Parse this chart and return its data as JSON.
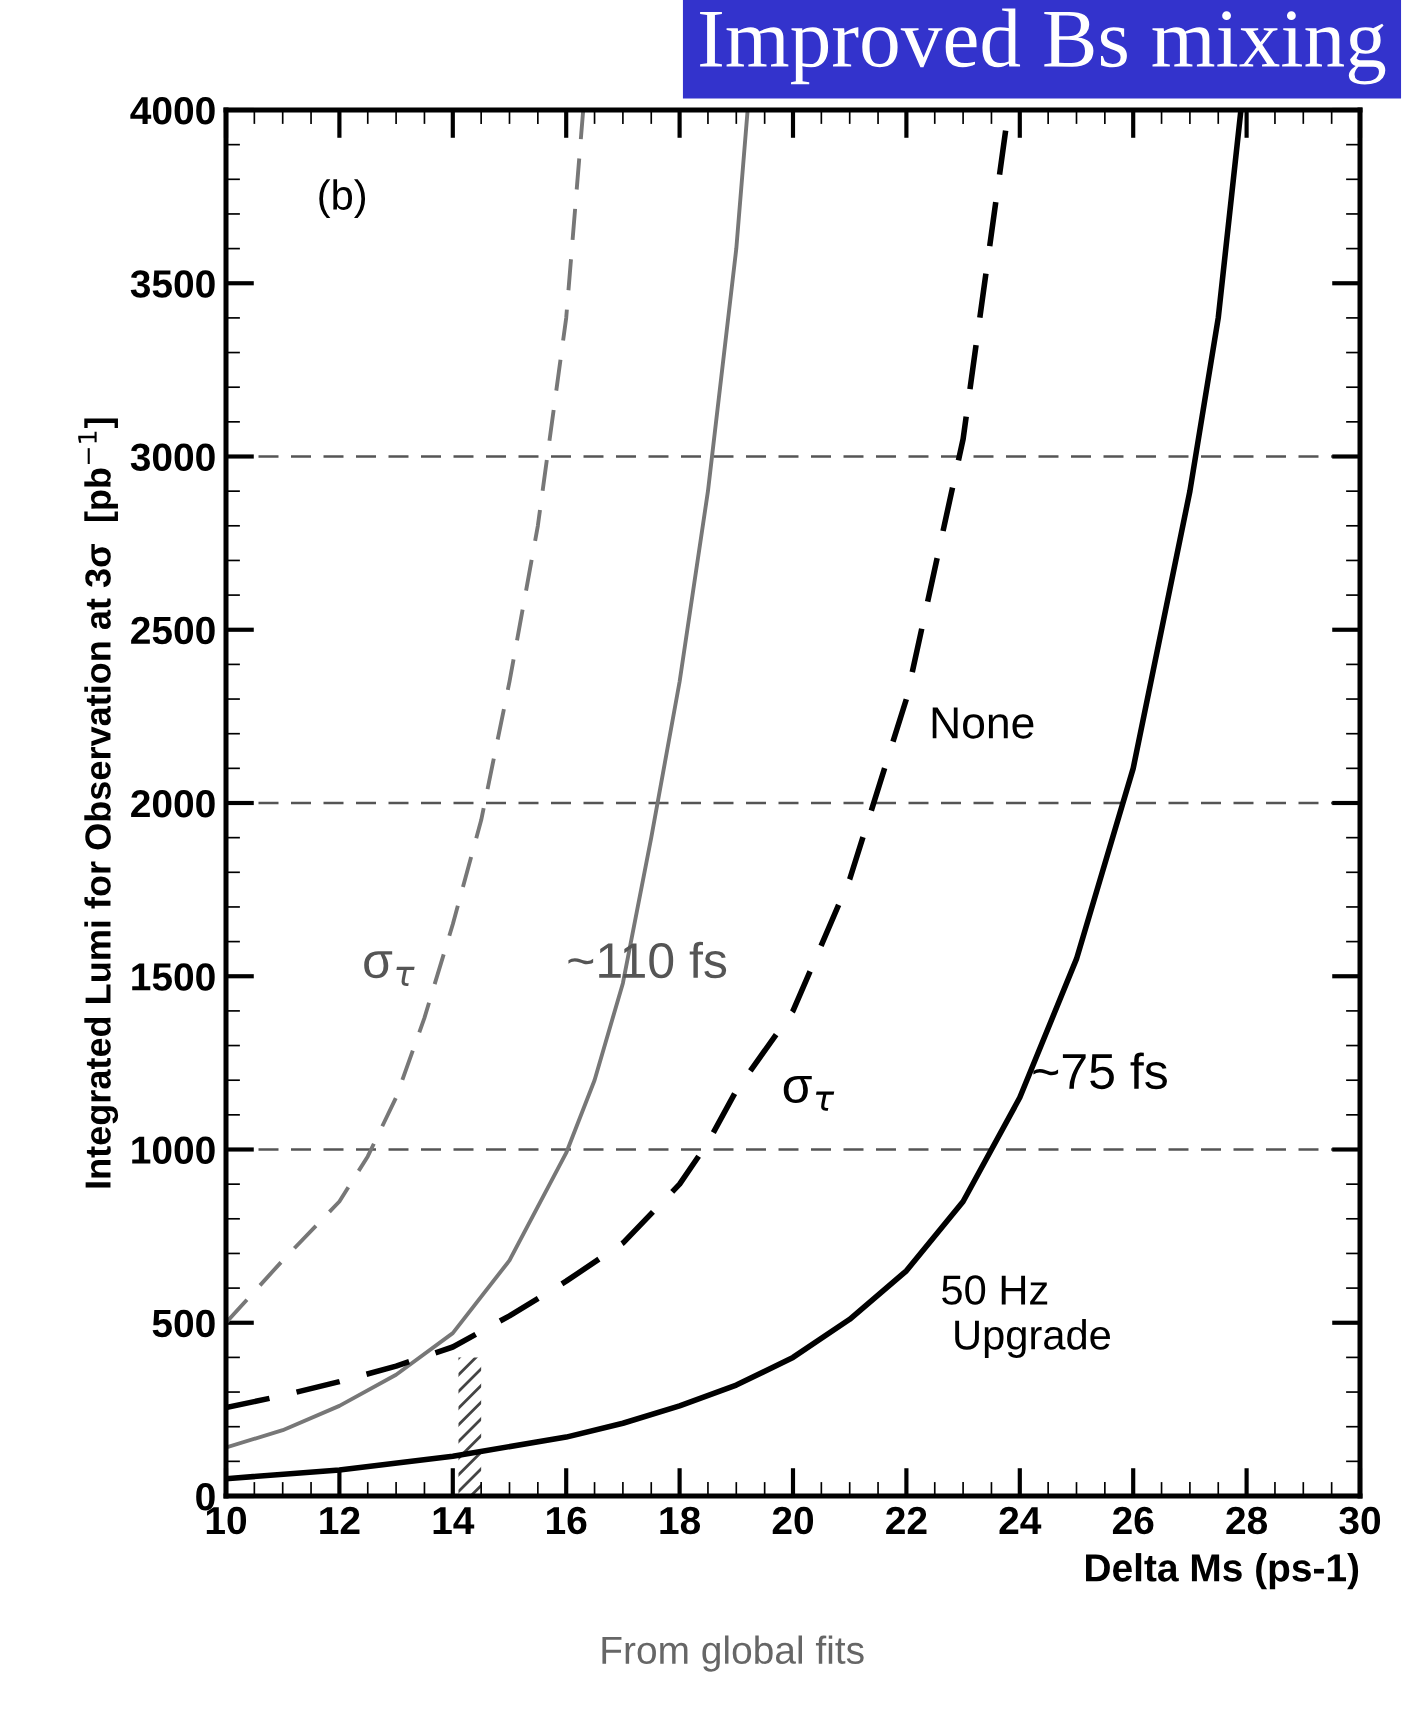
{
  "chart_data": {
    "type": "line",
    "title": "Improved Bs mixing",
    "xlabel": "Delta Ms (ps-1)",
    "ylabel": "Integrated Lumi for Observation at 3σ  [pb$^{−1}$]",
    "xlim": [
      10,
      30
    ],
    "xticks": [
      10,
      12,
      14,
      16,
      18,
      20,
      22,
      24,
      26,
      28,
      30
    ],
    "ylim": [
      0,
      4000
    ],
    "yticks": [
      0,
      500,
      1000,
      1500,
      2000,
      2500,
      3000,
      3500,
      4000
    ],
    "grid": false,
    "legend": false,
    "series": [
      {
        "color": "#777777",
        "line_style": "dashed",
        "x": [
          10,
          11,
          12,
          12.5,
          13,
          13.5,
          14,
          14.5,
          15,
          15.5,
          16,
          16.3
        ],
        "values": [
          500,
          680,
          850,
          980,
          1150,
          1380,
          1650,
          1950,
          2350,
          2800,
          3400,
          4000
        ]
      },
      {
        "color": "#777777",
        "line_style": "solid",
        "x": [
          10,
          11,
          12,
          13,
          14,
          15,
          16,
          16.5,
          17,
          17.5,
          18,
          18.5,
          19,
          19.2
        ],
        "values": [
          140,
          190,
          260,
          350,
          470,
          680,
          990,
          1200,
          1480,
          1900,
          2350,
          2900,
          3600,
          4000
        ]
      },
      {
        "color": "#000000",
        "line_style": "dashed",
        "x": [
          10,
          11,
          12,
          13,
          14,
          15,
          16,
          17,
          18,
          18.5,
          19,
          20,
          21,
          22,
          23,
          23.8
        ],
        "values": [
          255,
          290,
          330,
          375,
          430,
          520,
          620,
          730,
          900,
          1020,
          1170,
          1400,
          1780,
          2300,
          3050,
          4000
        ]
      },
      {
        "color": "#000000",
        "line_style": "solid",
        "x": [
          10,
          12,
          14,
          16,
          17,
          18,
          19,
          20,
          21,
          22,
          23,
          24,
          25,
          26,
          27,
          27.5,
          27.9
        ],
        "values": [
          50,
          75,
          115,
          170,
          210,
          260,
          320,
          400,
          510,
          650,
          850,
          1150,
          1550,
          2100,
          2900,
          3400,
          4000
        ]
      }
    ],
    "ref_lines": [
      {
        "axis": "y",
        "value": 1000,
        "color": "#555555",
        "line_style": "dashed"
      },
      {
        "axis": "y",
        "value": 2000,
        "color": "#555555",
        "line_style": "dashed"
      },
      {
        "axis": "y",
        "value": 3000,
        "color": "#555555",
        "line_style": "dashed"
      }
    ],
    "bands": [
      {
        "axis": "x",
        "from": 14.1,
        "to": 14.5
      }
    ],
    "annotations": [
      "(b)",
      "σ$_{τ}$",
      "~110 fs",
      "σ$_{τ}$",
      "None",
      "~75 fs",
      "50 Hz\n Upgrade",
      "From global fits"
    ]
  }
}
